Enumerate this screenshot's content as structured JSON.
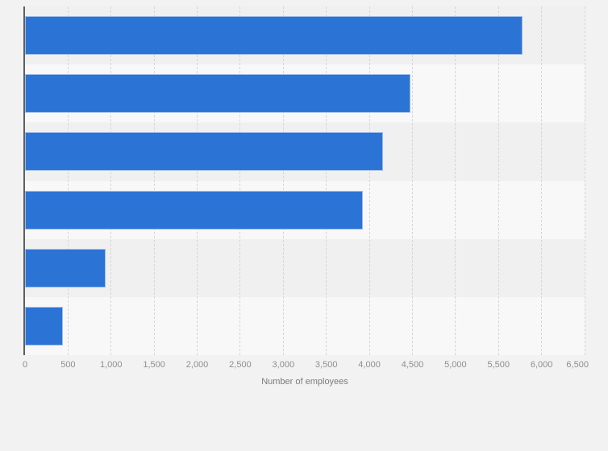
{
  "chart_data": {
    "type": "bar",
    "orientation": "horizontal",
    "title": "",
    "categories": [
      "",
      "",
      "",
      "",
      "",
      ""
    ],
    "values": [
      5780,
      4480,
      4160,
      3920,
      940,
      440
    ],
    "xlabel": "Number of employees",
    "ylabel": "",
    "xlim": [
      0,
      6500
    ],
    "x_tick_interval": 500,
    "x_tick_labels": [
      "0",
      "500",
      "1,000",
      "1,500",
      "2,000",
      "2,500",
      "3,000",
      "3,500",
      "4,000",
      "4,500",
      "5,000",
      "5,500",
      "6,000",
      "6,500"
    ],
    "grid": "vertical dashed gridlines at every x tick",
    "legend": "none",
    "plot_bands": "horizontal rows alternate dark/light, starting dark",
    "colors": {
      "bar": "#2b73d5",
      "bar_border": "#9dbce9",
      "background": "#f2f2f2",
      "band_dark": "#f0f0f1",
      "band_light": "#f8f8f9",
      "gridline": "#d6d6d8",
      "axis_line": "#5c5f62",
      "tick_label": "#8e8e8e",
      "axis_title": "#7b7b7b"
    }
  }
}
